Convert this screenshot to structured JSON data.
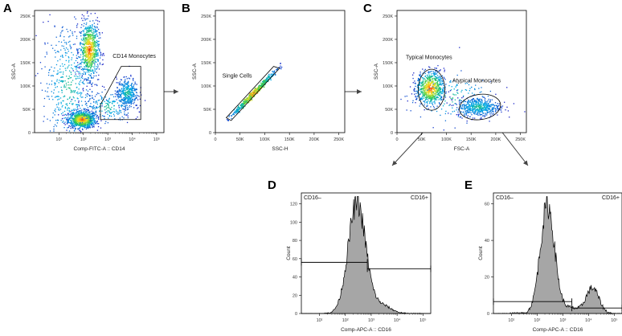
{
  "chart_data": [
    {
      "panel": "A",
      "type": "scatter",
      "subtype": "density-dotplot",
      "xlabel": "Comp-FITC-A :: CD14",
      "ylabel": "SSC-A",
      "x_scale": "log",
      "x_ticks": [
        {
          "v": 1,
          "label": "10¹"
        },
        {
          "v": 2,
          "label": "10²"
        },
        {
          "v": 3,
          "label": "10³"
        },
        {
          "v": 4,
          "label": "10⁴"
        },
        {
          "v": 5,
          "label": "10⁵"
        }
      ],
      "xlim": [
        0,
        5.3
      ],
      "y_ticks": [
        0,
        50,
        100,
        150,
        200,
        250
      ],
      "y_tick_labels": [
        "0",
        "50K",
        "100K",
        "150K",
        "200K",
        "250K"
      ],
      "ylim": [
        0,
        262
      ],
      "populations": [
        {
          "cx": 1.95,
          "cy": 28,
          "sx": 0.28,
          "sy": 9,
          "n": 900,
          "hot": true
        },
        {
          "cx": 2.25,
          "cy": 178,
          "sx": 0.2,
          "sy": 30,
          "n": 750,
          "hot": true
        },
        {
          "cx": 1.4,
          "cy": 100,
          "sx": 0.55,
          "sy": 70,
          "n": 500,
          "hot": false
        },
        {
          "cx": 3.8,
          "cy": 85,
          "sx": 0.22,
          "sy": 16,
          "n": 380,
          "hot": false
        },
        {
          "cx": 3.0,
          "cy": 55,
          "sx": 0.5,
          "sy": 18,
          "n": 220,
          "hot": false
        }
      ],
      "gate": {
        "label": "CD14 Monocytes",
        "points": [
          [
            2.7,
            60
          ],
          [
            3.55,
            142
          ],
          [
            4.35,
            142
          ],
          [
            4.35,
            28
          ],
          [
            2.7,
            28
          ]
        ]
      }
    },
    {
      "panel": "B",
      "type": "scatter",
      "subtype": "density-dotplot",
      "xlabel": "SSC-H",
      "ylabel": "SSC-A",
      "x_ticks": [
        0,
        50,
        100,
        150,
        200,
        250
      ],
      "x_tick_labels": [
        "0",
        "50K",
        "100K",
        "150K",
        "200K",
        "250K"
      ],
      "xlim": [
        0,
        262
      ],
      "y_ticks": [
        0,
        50,
        100,
        150,
        200,
        250
      ],
      "y_tick_labels": [
        "0",
        "50K",
        "100K",
        "150K",
        "200K",
        "250K"
      ],
      "ylim": [
        0,
        262
      ],
      "diagonal": {
        "from": 30,
        "to": 125,
        "n": 650
      },
      "gate": {
        "label": "Single Cells",
        "points": [
          [
            22,
            32
          ],
          [
            118,
            142
          ],
          [
            130,
            138
          ],
          [
            32,
            26
          ]
        ]
      }
    },
    {
      "panel": "C",
      "type": "scatter",
      "subtype": "density-dotplot",
      "xlabel": "FSC-A",
      "ylabel": "SSC-A",
      "x_ticks": [
        0,
        50,
        100,
        150,
        200,
        250
      ],
      "x_tick_labels": [
        "0",
        "50K",
        "100K",
        "150K",
        "200K",
        "250K"
      ],
      "xlim": [
        0,
        262
      ],
      "y_ticks": [
        0,
        50,
        100,
        150,
        200,
        250
      ],
      "y_tick_labels": [
        "0",
        "50K",
        "100K",
        "150K",
        "200K",
        "250K"
      ],
      "ylim": [
        0,
        262
      ],
      "populations": [
        {
          "cx": 68,
          "cy": 95,
          "sx": 14,
          "sy": 18,
          "n": 700,
          "hot": true
        },
        {
          "cx": 165,
          "cy": 55,
          "sx": 22,
          "sy": 10,
          "n": 480,
          "hot": false
        },
        {
          "cx": 110,
          "cy": 75,
          "sx": 45,
          "sy": 30,
          "n": 160,
          "hot": false
        }
      ],
      "gates": [
        {
          "label": "Typical Monocytes",
          "cx": 70,
          "cy": 92,
          "rx": 27,
          "ry": 44
        },
        {
          "label": "Atypical Monocytes",
          "cx": 168,
          "cy": 55,
          "rx": 42,
          "ry": 27
        }
      ]
    },
    {
      "panel": "D",
      "type": "area",
      "subtype": "histogram",
      "xlabel": "Comp-APC-A :: CD16",
      "ylabel": "Count",
      "x_scale": "log",
      "x_ticks": [
        {
          "v": 1,
          "label": "10¹"
        },
        {
          "v": 2,
          "label": "10²"
        },
        {
          "v": 3,
          "label": "10³"
        },
        {
          "v": 4,
          "label": "10⁴"
        },
        {
          "v": 5,
          "label": "10⁵"
        }
      ],
      "xlim": [
        0.3,
        5.3
      ],
      "y_ticks": [
        0,
        20,
        40,
        60,
        80,
        100,
        120
      ],
      "ylim": [
        0,
        132
      ],
      "peaks": [
        {
          "mu": 2.45,
          "sigma": 0.34,
          "height": 121
        }
      ],
      "tail": {
        "mu": 3.4,
        "sigma": 0.35,
        "height": 9
      },
      "markers": [
        {
          "label": "CD16–",
          "x0": 0.3,
          "x1": 2.85,
          "y": 56
        },
        {
          "label": "CD16+",
          "x0": 2.85,
          "x1": 5.3,
          "y": 49
        }
      ]
    },
    {
      "panel": "E",
      "type": "area",
      "subtype": "histogram",
      "xlabel": "Comp-APC-A :: CD16",
      "ylabel": "Count",
      "x_scale": "log",
      "x_ticks": [
        {
          "v": 1,
          "label": "10¹"
        },
        {
          "v": 2,
          "label": "10²"
        },
        {
          "v": 3,
          "label": "10³"
        },
        {
          "v": 4,
          "label": "10⁴"
        },
        {
          "v": 5,
          "label": "10⁵"
        }
      ],
      "xlim": [
        0.3,
        5.3
      ],
      "y_ticks": [
        0,
        20,
        40,
        60
      ],
      "ylim": [
        0,
        66
      ],
      "peaks": [
        {
          "mu": 2.4,
          "sigma": 0.28,
          "height": 59
        },
        {
          "mu": 4.15,
          "sigma": 0.25,
          "height": 14
        }
      ],
      "tail": {
        "mu": 3.3,
        "sigma": 0.3,
        "height": 3
      },
      "markers": [
        {
          "label": "CD16–",
          "x0": 0.3,
          "x1": 3.35,
          "y": 6.5
        },
        {
          "label": "CD16+",
          "x0": 3.35,
          "x1": 5.3,
          "y": 3
        }
      ]
    }
  ]
}
